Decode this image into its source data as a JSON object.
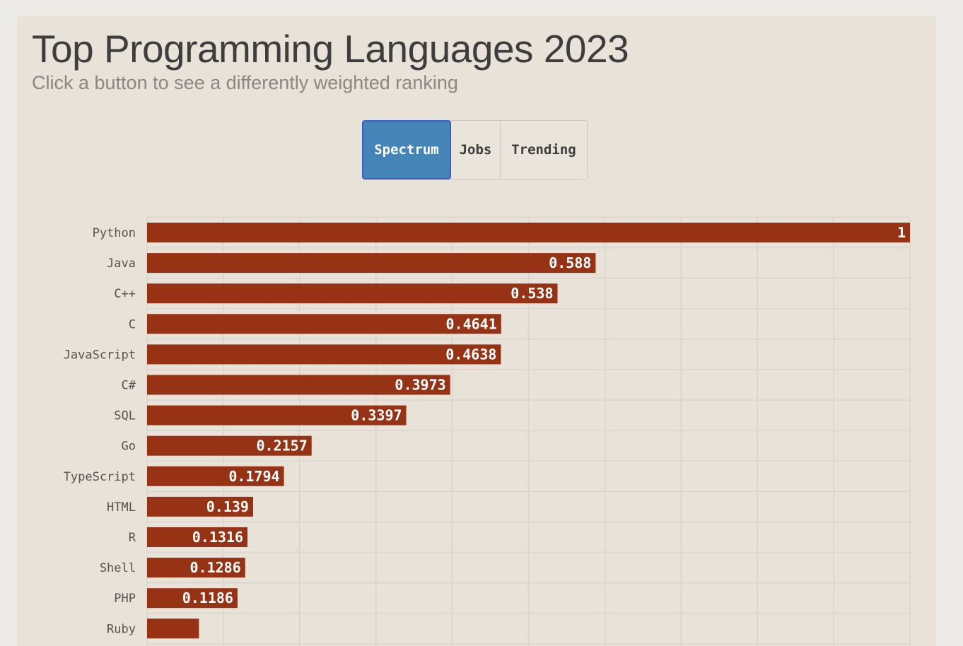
{
  "header": {
    "title": "Top Programming Languages 2023",
    "subtitle": "Click a button to see a differently weighted ranking"
  },
  "buttons": {
    "spectrum": "Spectrum",
    "jobs": "Jobs",
    "trending": "Trending",
    "active": "Spectrum"
  },
  "colors": {
    "bar": "#973315",
    "active_button": "#4584b6",
    "grid": "#d9d4cd"
  },
  "chart_data": {
    "type": "bar",
    "orientation": "horizontal",
    "title": "Top Programming Languages 2023",
    "xlim": [
      0,
      1
    ],
    "grid": true,
    "categories": [
      "Python",
      "Java",
      "C++",
      "C",
      "JavaScript",
      "C#",
      "SQL",
      "Go",
      "TypeScript",
      "HTML",
      "R",
      "Shell",
      "PHP",
      "Ruby"
    ],
    "values": [
      1,
      0.588,
      0.538,
      0.4641,
      0.4638,
      0.3973,
      0.3397,
      0.2157,
      0.1794,
      0.139,
      0.1316,
      0.1286,
      0.1186,
      0.068
    ],
    "labels": [
      "1",
      "0.588",
      "0.538",
      "0.4641",
      "0.4638",
      "0.3973",
      "0.3397",
      "0.2157",
      "0.1794",
      "0.139",
      "0.1316",
      "0.1286",
      "0.1186",
      ""
    ]
  }
}
